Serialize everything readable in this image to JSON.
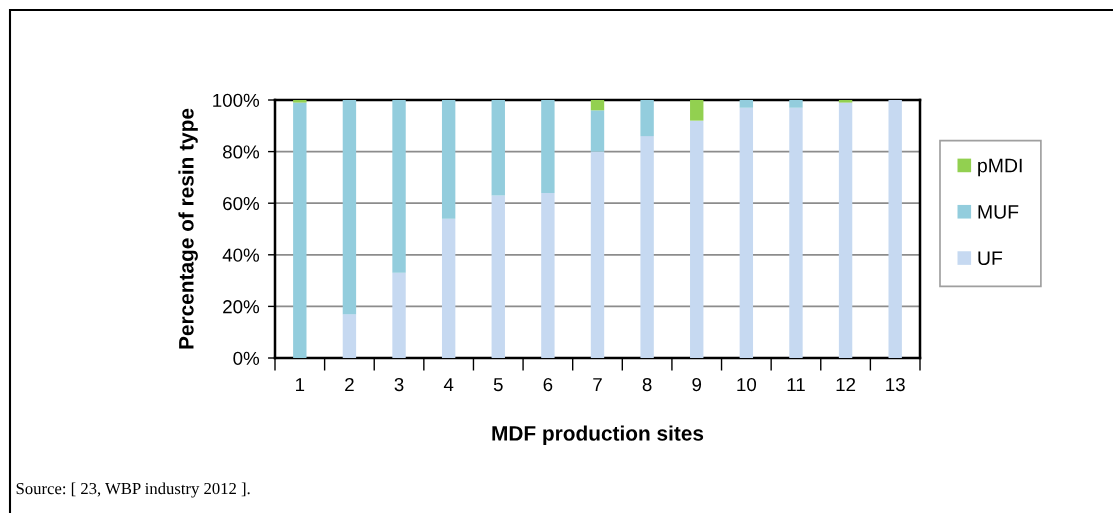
{
  "chart_data": {
    "type": "bar",
    "stacked": true,
    "categories": [
      "1",
      "2",
      "3",
      "4",
      "5",
      "6",
      "7",
      "8",
      "9",
      "10",
      "11",
      "12",
      "13"
    ],
    "series": [
      {
        "name": "UF",
        "color": "#c6d9f1",
        "values": [
          0,
          17,
          33,
          54,
          63,
          64,
          80,
          86,
          92,
          97,
          97,
          99,
          100
        ]
      },
      {
        "name": "MUF",
        "color": "#93cddd",
        "values": [
          99,
          83,
          67,
          46,
          37,
          36,
          16,
          14,
          0,
          3,
          3,
          0,
          0
        ]
      },
      {
        "name": "pMDI",
        "color": "#92d050",
        "values": [
          1,
          0,
          0,
          0,
          0,
          0,
          4,
          0,
          8,
          0,
          0,
          1,
          0
        ]
      }
    ],
    "ylim": [
      0,
      100
    ],
    "yticks": [
      {
        "value": 0,
        "label": "0%"
      },
      {
        "value": 20,
        "label": "20%"
      },
      {
        "value": 40,
        "label": "40%"
      },
      {
        "value": 60,
        "label": "60%"
      },
      {
        "value": 80,
        "label": "80%"
      },
      {
        "value": 100,
        "label": "100%"
      }
    ],
    "grid": "y",
    "legend": "right",
    "xlabel": "MDF production sites",
    "ylabel": "Percentage of resin type",
    "annotations": [
      "Source: [ 23, WBP industry 2012 ]."
    ]
  }
}
